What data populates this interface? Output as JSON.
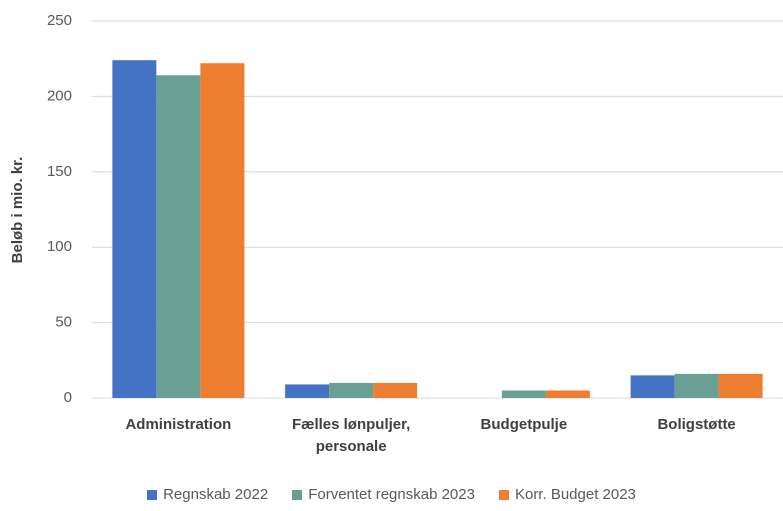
{
  "chart_data": {
    "type": "bar",
    "y_label": "Beløb i mio. kr.",
    "categories": [
      "Administration",
      "Fælles lønpuljer, personale",
      "Budgetpulje",
      "Boligstøtte"
    ],
    "series": [
      {
        "name": "Regnskab 2022",
        "color": "#4472c4",
        "values": [
          224,
          9,
          0,
          15
        ]
      },
      {
        "name": "Forventet regnskab 2023",
        "color": "#6aa093",
        "values": [
          214,
          10,
          5,
          16
        ]
      },
      {
        "name": "Korr. Budget 2023",
        "color": "#ed7d31",
        "values": [
          222,
          10,
          5,
          16
        ]
      }
    ],
    "ylim": [
      0,
      250
    ],
    "yticks": [
      0,
      50,
      100,
      150,
      200,
      250
    ],
    "grid": true,
    "legend": "bottom"
  }
}
